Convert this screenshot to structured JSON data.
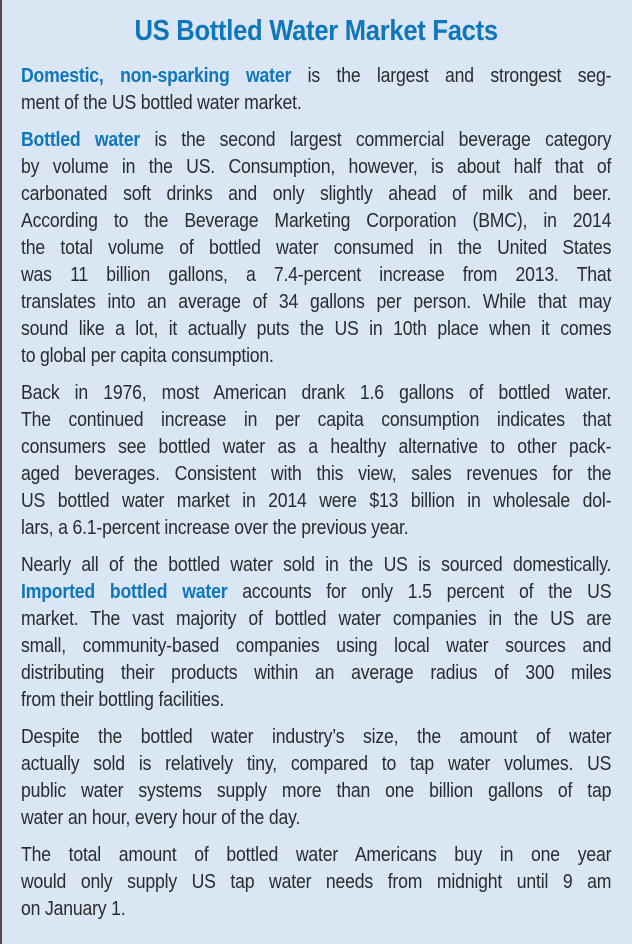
{
  "title": "US Bottled Water Market Facts",
  "colors": {
    "background": "#dae6f3",
    "accent_blue": "#0e76bc",
    "body_text": "#2a2b2e",
    "page_edge": "#43292c"
  },
  "paragraphs": [
    {
      "lines": [
        [
          {
            "t": "Domestic, non-sparking water",
            "em": true
          },
          {
            "t": " is the largest and strongest seg-",
            "em": false
          }
        ],
        [
          {
            "t": "ment of the US bottled water market.",
            "em": false
          }
        ]
      ]
    },
    {
      "lines": [
        [
          {
            "t": "Bottled water",
            "em": true
          },
          {
            "t": " is the second largest commercial beverage category",
            "em": false
          }
        ],
        [
          {
            "t": "by volume in the US. Consumption, however, is about half that of",
            "em": false
          }
        ],
        [
          {
            "t": "carbonated soft drinks and only slightly ahead of milk and beer.",
            "em": false
          }
        ],
        [
          {
            "t": "According to the Beverage Marketing Corporation (BMC), in 2014",
            "em": false
          }
        ],
        [
          {
            "t": "the total volume of bottled water consumed in the United States",
            "em": false
          }
        ],
        [
          {
            "t": "was 11 billion gallons, a 7.4-percent increase from 2013. That",
            "em": false
          }
        ],
        [
          {
            "t": "translates into an average of 34 gallons per person. While that may",
            "em": false
          }
        ],
        [
          {
            "t": "sound like a lot, it actually puts the US in 10th place when it comes",
            "em": false
          }
        ],
        [
          {
            "t": "to global per capita consumption.",
            "em": false
          }
        ]
      ]
    },
    {
      "lines": [
        [
          {
            "t": "Back in 1976, most American drank 1.6 gallons of bottled water.",
            "em": false
          }
        ],
        [
          {
            "t": "The continued increase in per capita consumption indicates that",
            "em": false
          }
        ],
        [
          {
            "t": "consumers see bottled water as a healthy alternative to other pack-",
            "em": false
          }
        ],
        [
          {
            "t": "aged beverages. Consistent with this view, sales revenues for the",
            "em": false
          }
        ],
        [
          {
            "t": "US bottled water market in 2014 were $13 billion in wholesale dol-",
            "em": false
          }
        ],
        [
          {
            "t": "lars, a 6.1-percent increase over the previous year.",
            "em": false
          }
        ]
      ]
    },
    {
      "lines": [
        [
          {
            "t": "Nearly all of the bottled water sold in the US is sourced domestically.",
            "em": false
          }
        ],
        [
          {
            "t": "Imported bottled water",
            "em": true
          },
          {
            "t": " accounts for only 1.5 percent of the US",
            "em": false
          }
        ],
        [
          {
            "t": "market. The vast majority of bottled water companies in the US are",
            "em": false
          }
        ],
        [
          {
            "t": "small, community-based companies using local water sources and",
            "em": false
          }
        ],
        [
          {
            "t": "distributing their products within an average radius of 300 miles",
            "em": false
          }
        ],
        [
          {
            "t": "from their bottling facilities.",
            "em": false
          }
        ]
      ]
    },
    {
      "lines": [
        [
          {
            "t": "Despite the bottled water industry’s size, the amount of water",
            "em": false
          }
        ],
        [
          {
            "t": "actually sold is relatively tiny, compared to tap water volumes. US",
            "em": false
          }
        ],
        [
          {
            "t": "public water systems supply more than one billion gallons of tap",
            "em": false
          }
        ],
        [
          {
            "t": "water an hour, every hour of the day.",
            "em": false
          }
        ]
      ]
    },
    {
      "lines": [
        [
          {
            "t": "The total amount of bottled water Americans buy in one year",
            "em": false
          }
        ],
        [
          {
            "t": "would only supply US tap water needs from midnight until 9 am",
            "em": false
          }
        ],
        [
          {
            "t": "on January 1.",
            "em": false
          }
        ]
      ]
    }
  ]
}
